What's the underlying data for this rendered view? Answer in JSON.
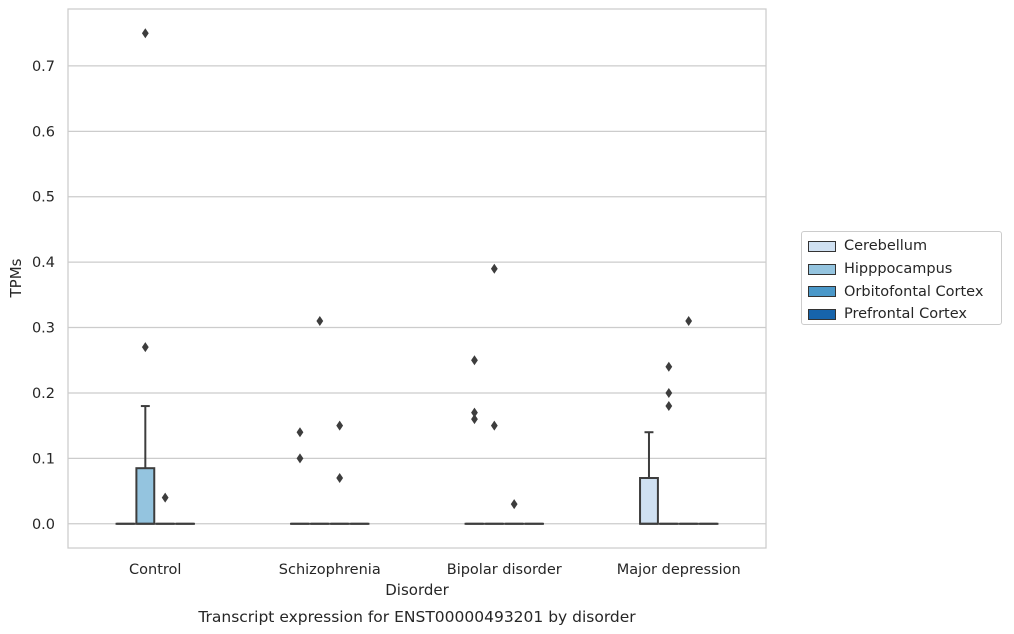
{
  "chart_data": {
    "type": "box",
    "caption": "Transcript expression for ENST00000493201 by disorder",
    "xlabel": "Disorder",
    "ylabel": "TPMs",
    "ylim": [
      -0.037,
      0.787
    ],
    "yticks": [
      0.0,
      0.1,
      0.2,
      0.3,
      0.4,
      0.5,
      0.6,
      0.7
    ],
    "ytick_labels": [
      "0.0",
      "0.1",
      "0.2",
      "0.3",
      "0.4",
      "0.5",
      "0.6",
      "0.7"
    ],
    "grid": "horizontal",
    "legend_position": "right",
    "categories": [
      "Control",
      "Schizophrenia",
      "Bipolar disorder",
      "Major depression"
    ],
    "series": [
      {
        "name": "Cerebellum",
        "color": "#d0e1f2",
        "boxes": [
          {
            "q1": 0,
            "median": 0,
            "q3": 0,
            "whislo": 0,
            "whishi": 0,
            "fliers": []
          },
          {
            "q1": 0,
            "median": 0,
            "q3": 0,
            "whislo": 0,
            "whishi": 0,
            "fliers": [
              0.1,
              0.14
            ]
          },
          {
            "q1": 0,
            "median": 0,
            "q3": 0,
            "whislo": 0,
            "whishi": 0,
            "fliers": [
              0.16,
              0.17,
              0.25
            ]
          },
          {
            "q1": 0,
            "median": 0,
            "q3": 0.07,
            "whislo": 0,
            "whishi": 0.14,
            "fliers": []
          }
        ]
      },
      {
        "name": "Hipppocampus",
        "color": "#94c4df",
        "boxes": [
          {
            "q1": 0,
            "median": 0,
            "q3": 0.085,
            "whislo": 0,
            "whishi": 0.18,
            "fliers": [
              0.27,
              0.75
            ]
          },
          {
            "q1": 0,
            "median": 0,
            "q3": 0,
            "whislo": 0,
            "whishi": 0,
            "fliers": [
              0.31
            ]
          },
          {
            "q1": 0,
            "median": 0,
            "q3": 0,
            "whislo": 0,
            "whishi": 0,
            "fliers": [
              0.39,
              0.15
            ]
          },
          {
            "q1": 0,
            "median": 0,
            "q3": 0,
            "whislo": 0,
            "whishi": 0,
            "fliers": [
              0.18,
              0.2,
              0.24
            ]
          }
        ]
      },
      {
        "name": "Orbitofontal Cortex",
        "color": "#4a98c9",
        "boxes": [
          {
            "q1": 0,
            "median": 0,
            "q3": 0,
            "whislo": 0,
            "whishi": 0,
            "fliers": [
              0.04
            ]
          },
          {
            "q1": 0,
            "median": 0,
            "q3": 0,
            "whislo": 0,
            "whishi": 0,
            "fliers": [
              0.07,
              0.15
            ]
          },
          {
            "q1": 0,
            "median": 0,
            "q3": 0,
            "whislo": 0,
            "whishi": 0,
            "fliers": [
              0.03
            ]
          },
          {
            "q1": 0,
            "median": 0,
            "q3": 0,
            "whislo": 0,
            "whishi": 0,
            "fliers": [
              0.31
            ]
          }
        ]
      },
      {
        "name": "Prefrontal Cortex",
        "color": "#1764ab",
        "boxes": [
          {
            "q1": 0,
            "median": 0,
            "q3": 0,
            "whislo": 0,
            "whishi": 0,
            "fliers": []
          },
          {
            "q1": 0,
            "median": 0,
            "q3": 0,
            "whislo": 0,
            "whishi": 0,
            "fliers": []
          },
          {
            "q1": 0,
            "median": 0,
            "q3": 0,
            "whislo": 0,
            "whishi": 0,
            "fliers": []
          },
          {
            "q1": 0,
            "median": 0,
            "q3": 0,
            "whislo": 0,
            "whishi": 0,
            "fliers": []
          }
        ]
      }
    ]
  }
}
